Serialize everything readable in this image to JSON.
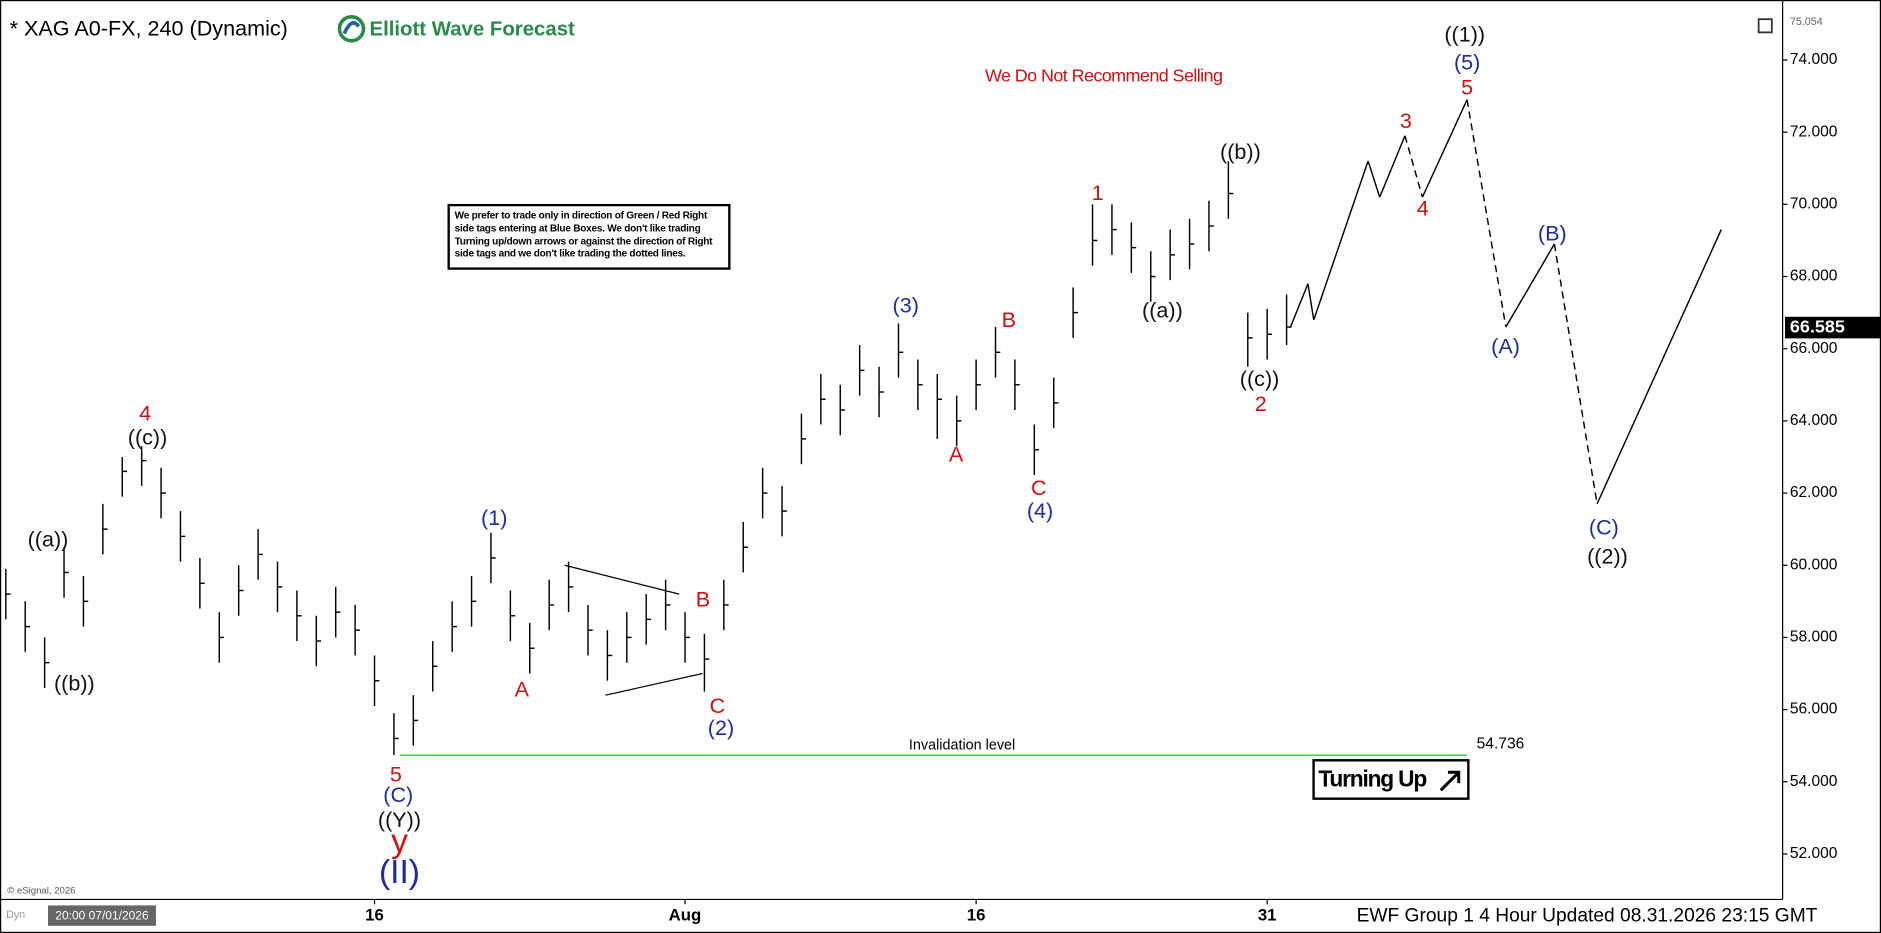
{
  "chart_data": {
    "type": "ohlc",
    "title": "* XAG A0-FX, 240 (Dynamic)",
    "brand": "Elliott Wave Forecast",
    "warning": "We Do Not Recommend Selling",
    "note": "We prefer to trade only in direction of Green / Red Right side tags entering at Blue Boxes. We don't like trading Turning up/down arrows or against the direction of Right side tags and we don't like trading the dotted lines.",
    "color": "#000000",
    "x": [
      -3,
      -2,
      -1,
      0,
      1,
      2,
      3,
      4,
      5,
      6,
      7,
      8,
      9,
      10,
      11,
      12,
      13,
      14,
      15,
      16,
      17,
      18,
      19,
      20,
      21,
      22,
      23,
      24,
      25,
      26,
      27,
      28,
      29,
      30,
      31,
      32,
      33,
      34,
      35,
      36,
      37,
      38,
      39,
      40,
      41,
      42,
      43,
      44,
      45,
      46,
      47,
      48,
      49,
      50,
      51,
      52,
      53,
      54,
      55,
      56,
      57,
      58,
      59,
      60,
      61,
      62,
      63
    ],
    "high": [
      59.9,
      59.0,
      58.0,
      60.5,
      59.7,
      61.7,
      63.0,
      63.3,
      62.7,
      61.5,
      60.2,
      58.7,
      60.0,
      61.0,
      60.1,
      59.3,
      58.6,
      59.4,
      58.9,
      57.5,
      55.9,
      56.4,
      57.9,
      59.0,
      59.7,
      60.9,
      59.3,
      58.4,
      59.6,
      60.1,
      58.9,
      58.2,
      58.7,
      59.2,
      59.6,
      58.7,
      58.1,
      59.6,
      61.2,
      62.7,
      62.2,
      64.2,
      65.3,
      65.0,
      66.1,
      65.5,
      66.7,
      65.7,
      65.3,
      64.7,
      65.7,
      66.6,
      65.7,
      63.9,
      65.2,
      67.7,
      70.0,
      70.0,
      69.5,
      68.7,
      69.3,
      69.6,
      70.1,
      71.2,
      67.0,
      67.1,
      67.5
    ],
    "low": [
      58.5,
      57.6,
      56.6,
      59.1,
      58.3,
      60.3,
      61.9,
      62.2,
      61.3,
      60.1,
      58.8,
      57.3,
      58.6,
      59.6,
      58.7,
      57.9,
      57.2,
      58.0,
      57.5,
      56.1,
      54.74,
      55.0,
      56.5,
      57.6,
      58.3,
      59.5,
      57.9,
      57.0,
      58.2,
      58.7,
      57.5,
      56.8,
      57.3,
      57.8,
      58.2,
      57.3,
      56.5,
      58.2,
      59.8,
      61.3,
      60.8,
      62.8,
      63.9,
      63.6,
      64.7,
      64.1,
      65.2,
      64.3,
      63.5,
      63.3,
      64.3,
      65.2,
      64.3,
      62.5,
      63.8,
      66.3,
      68.3,
      68.6,
      68.1,
      67.3,
      67.9,
      68.2,
      68.7,
      69.6,
      65.5,
      65.7,
      66.1
    ],
    "close": [
      59.2,
      58.3,
      57.3,
      59.8,
      59.0,
      61.0,
      62.6,
      62.9,
      62.0,
      60.8,
      59.5,
      58.0,
      59.3,
      60.3,
      59.4,
      58.6,
      57.9,
      58.7,
      58.2,
      56.8,
      55.2,
      55.7,
      57.2,
      58.3,
      59.0,
      60.2,
      58.6,
      57.7,
      58.9,
      59.4,
      58.2,
      57.5,
      58.0,
      58.5,
      58.9,
      58.0,
      57.4,
      58.9,
      60.5,
      62.0,
      61.5,
      63.5,
      64.6,
      64.3,
      65.4,
      64.8,
      65.9,
      65.0,
      64.6,
      64.0,
      65.0,
      65.9,
      65.0,
      63.2,
      64.5,
      67.0,
      69.0,
      69.3,
      68.8,
      68.0,
      68.6,
      68.9,
      69.4,
      70.3,
      66.3,
      66.4,
      66.6
    ],
    "xlim": [
      -3.3,
      88.5
    ],
    "xticks": [
      {
        "value": 16,
        "label": "16"
      },
      {
        "value": 32,
        "label": "Aug"
      },
      {
        "value": 47,
        "label": "16"
      },
      {
        "value": 62,
        "label": "31"
      }
    ],
    "ylim": [
      50.74,
      75.33
    ],
    "yticks": [
      {
        "value": 52,
        "label": "52.000"
      },
      {
        "value": 54,
        "label": "54.000"
      },
      {
        "value": 56,
        "label": "56.000"
      },
      {
        "value": 58,
        "label": "58.000"
      },
      {
        "value": 60,
        "label": "60.000"
      },
      {
        "value": 62,
        "label": "62.000"
      },
      {
        "value": 64,
        "label": "64.000"
      },
      {
        "value": 66,
        "label": "66.000"
      },
      {
        "value": 68,
        "label": "68.000"
      },
      {
        "value": 70,
        "label": "70.000"
      },
      {
        "value": 72,
        "label": "72.000"
      },
      {
        "value": 74,
        "label": "74.000"
      }
    ],
    "top_price": 75.054,
    "last_price": 66.585,
    "invalidation": {
      "label": "Invalidation level",
      "value": 54.736,
      "x": [
        17.3,
        72.3
      ],
      "color": "#33cc33"
    },
    "projection": {
      "x": [
        63.2,
        64.1,
        64.4,
        67.2,
        67.8,
        69.1,
        70.0,
        72.3,
        74.3,
        76.8,
        79.0,
        85.4
      ],
      "values": [
        66.6,
        67.8,
        66.8,
        71.2,
        70.2,
        71.9,
        70.2,
        72.9,
        66.6,
        68.9,
        61.7,
        69.3
      ],
      "dashed": [
        false,
        false,
        false,
        false,
        false,
        true,
        false,
        true,
        false,
        true,
        false
      ]
    },
    "trendlines": [
      {
        "x": [
          25.8,
          31.7
        ],
        "values": [
          60.0,
          59.2
        ]
      },
      {
        "x": [
          27.9,
          32.9
        ],
        "values": [
          56.4,
          57.0
        ]
      }
    ],
    "wave_labels": [
      {
        "text": "4",
        "color": "#cc1111"
      },
      {
        "text": "((c))",
        "color": "#111111"
      },
      {
        "text": "((a))",
        "color": "#111111"
      },
      {
        "text": "((b))",
        "color": "#111111"
      },
      {
        "text": "(1)",
        "color": "#1c2c9c"
      },
      {
        "text": "A",
        "color": "#cc1111"
      },
      {
        "text": "B",
        "color": "#cc1111"
      },
      {
        "text": "C",
        "color": "#cc1111"
      },
      {
        "text": "(2)",
        "color": "#1c2c9c"
      },
      {
        "text": "5",
        "color": "#cc1111"
      },
      {
        "text": "(C)",
        "color": "#1c2c9c"
      },
      {
        "text": "((Y))",
        "color": "#111111"
      },
      {
        "text": "y",
        "color": "#cc1111"
      },
      {
        "text": "(II)",
        "color": "#1c2c9c"
      },
      {
        "text": "(3)",
        "color": "#1c2c9c"
      },
      {
        "text": "A",
        "color": "#cc1111"
      },
      {
        "text": "B",
        "color": "#cc1111"
      },
      {
        "text": "C",
        "color": "#cc1111"
      },
      {
        "text": "(4)",
        "color": "#1c2c9c"
      },
      {
        "text": "1",
        "color": "#cc1111"
      },
      {
        "text": "((a))",
        "color": "#111111"
      },
      {
        "text": "((b))",
        "color": "#111111"
      },
      {
        "text": "((c))",
        "color": "#111111"
      },
      {
        "text": "2",
        "color": "#cc1111"
      },
      {
        "text": "3",
        "color": "#cc1111"
      },
      {
        "text": "4",
        "color": "#cc1111"
      },
      {
        "text": "5",
        "color": "#cc1111"
      },
      {
        "text": "(5)",
        "color": "#1c2c9c"
      },
      {
        "text": "((1))",
        "color": "#111111"
      },
      {
        "text": "(A)",
        "color": "#1c2c9c"
      },
      {
        "text": "(B)",
        "color": "#1c2c9c"
      },
      {
        "text": "(C)",
        "color": "#1c2c9c"
      },
      {
        "text": "((2))",
        "color": "#111111"
      }
    ],
    "signal": "Turning Up",
    "footer": "EWF Group 1 4 Hour Updated 08.31.2026 23:15 GMT",
    "copyright": "© eSignal, 2026",
    "start_time": "20:00 07/01/2026",
    "dyn": "Dyn"
  }
}
